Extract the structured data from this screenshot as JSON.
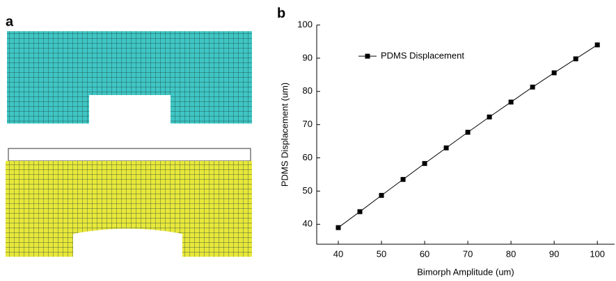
{
  "panel_labels": [
    "a",
    "b"
  ],
  "chart_data": {
    "type": "line",
    "x_label": "Bimorph Amplitude (um)",
    "y_label": "PDMS Displacement (um)",
    "x": [
      40,
      45,
      50,
      55,
      60,
      65,
      70,
      75,
      80,
      85,
      90,
      95,
      100
    ],
    "series": [
      {
        "name": "PDMS Displacement",
        "color": "#000000",
        "values": [
          39,
          43.8,
          48.7,
          53.5,
          58.3,
          63,
          67.7,
          72.3,
          76.8,
          81.3,
          85.6,
          89.8,
          94
        ]
      }
    ],
    "xlim": [
      35,
      104
    ],
    "xticks": [
      40,
      50,
      60,
      70,
      80,
      90,
      100
    ],
    "ylim": [
      34,
      100
    ],
    "yticks": [
      40,
      50,
      60,
      70,
      80,
      90,
      100
    ],
    "legend": "upper left"
  }
}
